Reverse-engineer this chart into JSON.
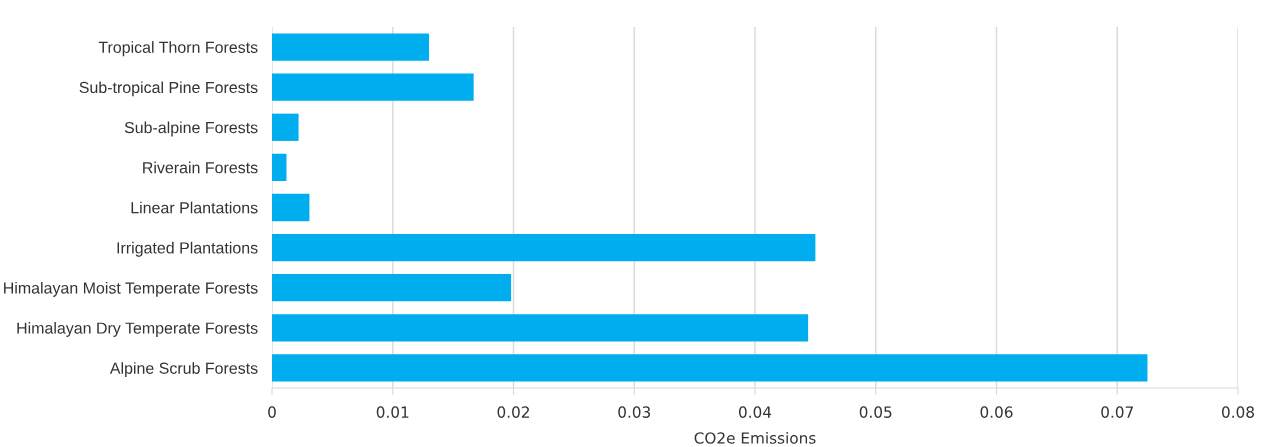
{
  "chart_data": {
    "type": "bar",
    "orientation": "horizontal",
    "xlabel": "CO2e Emissions",
    "categories": [
      "Tropical Thorn Forests",
      "Sub-tropical Pine Forests",
      "Sub-alpine Forests",
      "Riverain Forests",
      "Linear Plantations",
      "Irrigated Plantations",
      "Himalayan Moist Temperate Forests",
      "Himalayan Dry Temperate Forests",
      "Alpine Scrub Forests"
    ],
    "values": [
      0.013,
      0.0167,
      0.0022,
      0.0012,
      0.0031,
      0.045,
      0.0198,
      0.0444,
      0.0725
    ],
    "color": "#00aeef",
    "xlim": [
      0,
      0.08
    ],
    "xticks": [
      0,
      0.01,
      0.02,
      0.03,
      0.04,
      0.05,
      0.06,
      0.07,
      0.08
    ],
    "grid": "x"
  }
}
